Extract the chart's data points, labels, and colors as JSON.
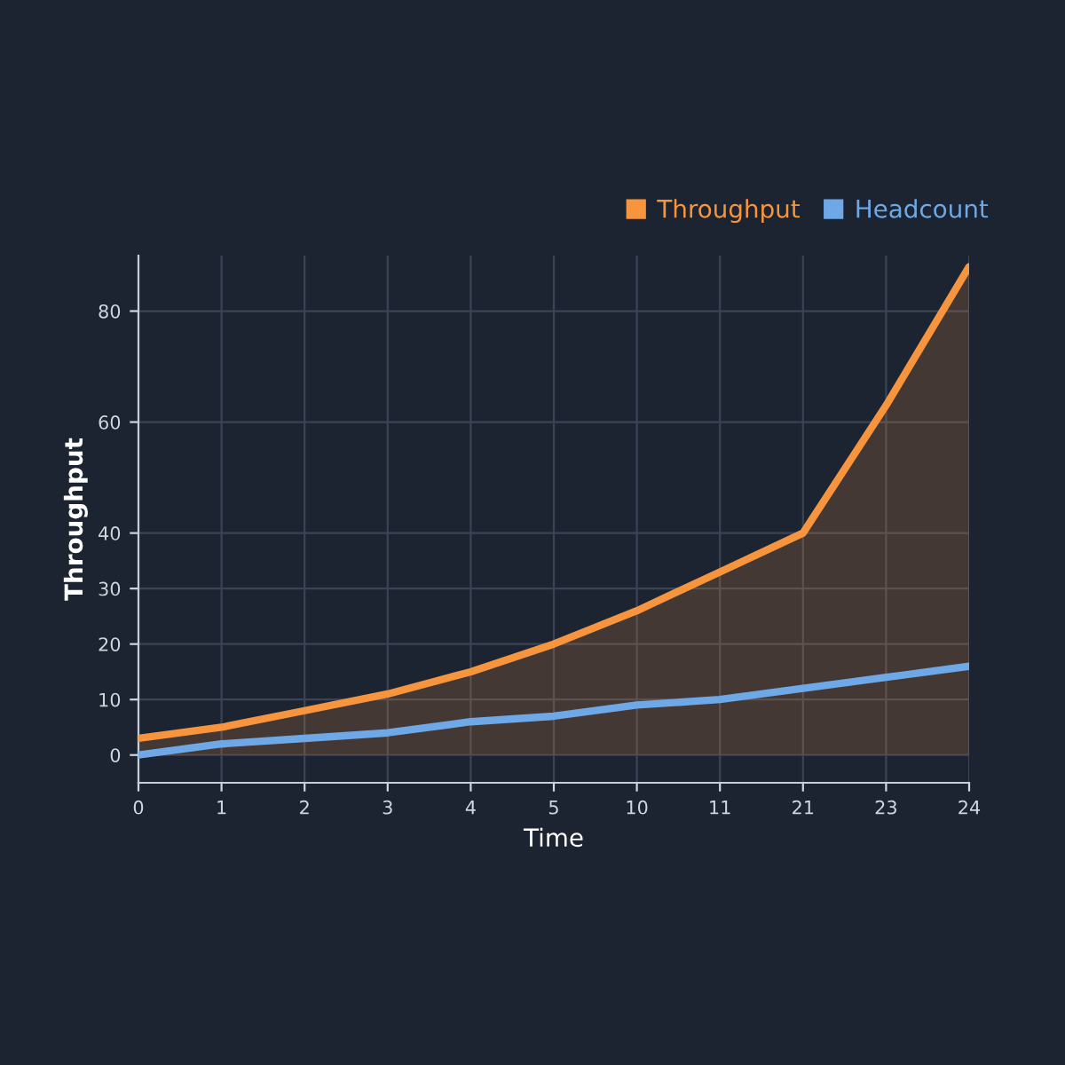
{
  "chart_data": {
    "type": "line",
    "xlabel": "Time",
    "ylabel": "Throughput",
    "categories": [
      "0",
      "1",
      "2",
      "3",
      "4",
      "5",
      "10",
      "11",
      "21",
      "23",
      "24"
    ],
    "series": [
      {
        "name": "Throughput",
        "type": "area",
        "color": "#f7953f",
        "values": [
          3,
          5,
          8,
          11,
          15,
          20,
          26,
          33,
          40,
          63,
          88
        ]
      },
      {
        "name": "Headcount",
        "color": "#6fa8e6",
        "values": [
          0,
          2,
          3,
          4,
          6,
          7,
          9,
          10,
          12,
          14,
          16
        ]
      }
    ],
    "ylim": [
      -5,
      90
    ],
    "yticks": [
      0,
      10,
      20,
      30,
      40,
      60,
      80
    ],
    "grid": true,
    "legend": "top right"
  }
}
